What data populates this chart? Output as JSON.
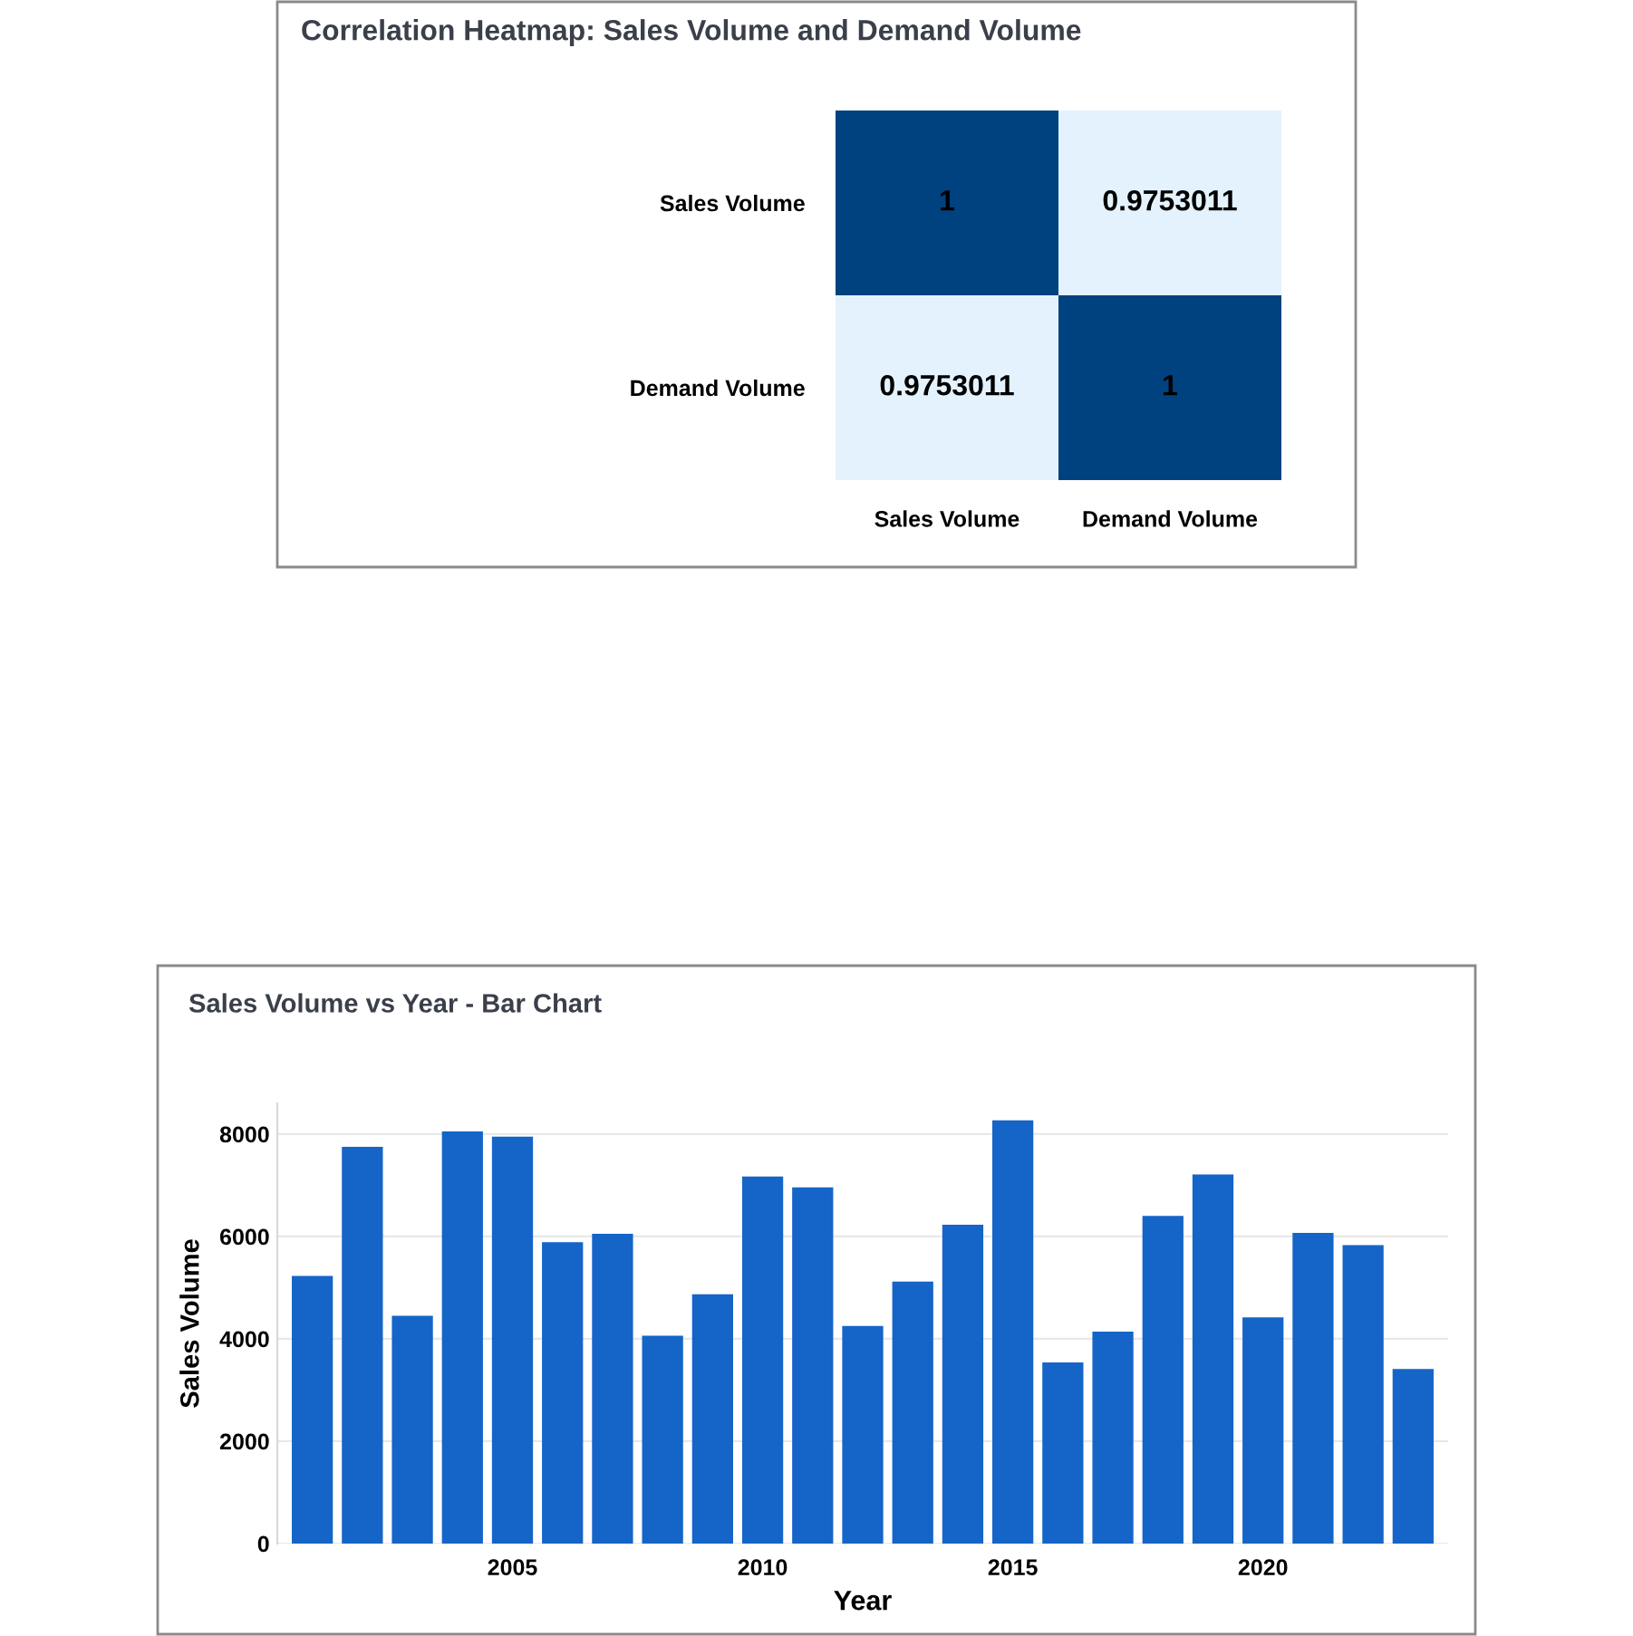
{
  "chart_data": [
    {
      "type": "heatmap",
      "title": "Correlation Heatmap: Sales Volume and Demand Volume",
      "categories": [
        "Sales Volume",
        "Demand Volume"
      ],
      "y_categories": [
        "Sales Volume",
        "Demand Volume"
      ],
      "cells": [
        [
          1,
          0.9753011
        ],
        [
          0.9753011,
          1
        ]
      ],
      "colors": [
        "#e3f2fd",
        "#00427f"
      ],
      "data_labels": true
    },
    {
      "type": "bar",
      "title": "Sales Volume vs Year - Bar Chart",
      "xlabel": "Year",
      "ylabel": "Sales Volume",
      "x": [
        2001,
        2002,
        2003,
        2004,
        2005,
        2006,
        2007,
        2008,
        2009,
        2010,
        2011,
        2012,
        2013,
        2014,
        2015,
        2016,
        2017,
        2018,
        2019,
        2020,
        2021,
        2022,
        2023
      ],
      "values": [
        5230,
        7750,
        4450,
        8050,
        7950,
        5890,
        6050,
        4060,
        4870,
        7170,
        6960,
        4250,
        5120,
        6230,
        8270,
        3540,
        4140,
        6400,
        7210,
        4420,
        6070,
        5830,
        3410
      ],
      "color": "#1565c8",
      "xlim": [
        2000.3,
        2023.7
      ],
      "xticks": [
        2005,
        2010,
        2015,
        2020
      ],
      "ylim": [
        0,
        8600
      ],
      "yticks": [
        0,
        2000,
        4000,
        6000,
        8000
      ],
      "grid": "y"
    }
  ]
}
